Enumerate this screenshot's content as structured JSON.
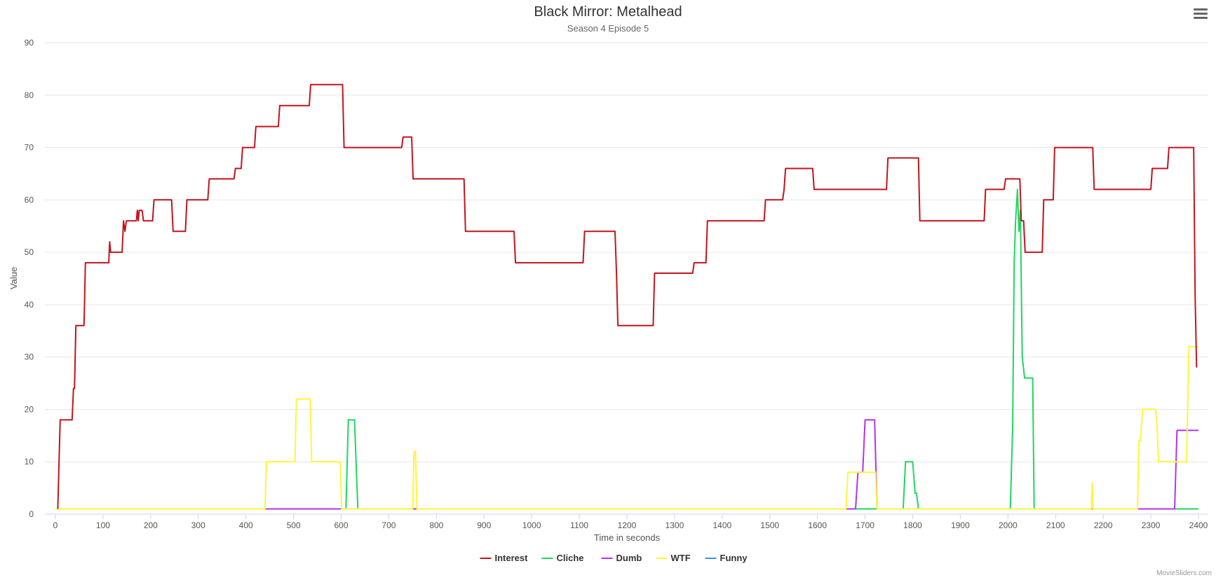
{
  "header": {
    "title": "Black Mirror: Metalhead",
    "subtitle": "Season 4 Episode 5",
    "menu_icon": "hamburger-menu-icon"
  },
  "footer": {
    "credit": "MovieSliders.com"
  },
  "chart_data": {
    "type": "line",
    "title": "Black Mirror: Metalhead",
    "subtitle": "Season 4 Episode 5",
    "xlabel": "Time in seconds",
    "ylabel": "Value",
    "xlim": [
      0,
      2400
    ],
    "ylim": [
      0,
      90
    ],
    "x_ticks": [
      0,
      100,
      200,
      300,
      400,
      500,
      600,
      700,
      800,
      900,
      1000,
      1100,
      1200,
      1300,
      1400,
      1500,
      1600,
      1700,
      1800,
      1900,
      2000,
      2100,
      2200,
      2300,
      2400
    ],
    "y_ticks": [
      0,
      10,
      20,
      30,
      40,
      50,
      60,
      70,
      80,
      90
    ],
    "grid": "horizontal",
    "legend_position": "bottom-center",
    "series": [
      {
        "name": "Funny",
        "color": "#2f9ae0",
        "points": [
          [
            0,
            1
          ],
          [
            2400,
            1
          ]
        ]
      },
      {
        "name": "Cliche",
        "color": "#1fd661",
        "points": [
          [
            0,
            1
          ],
          [
            610,
            1
          ],
          [
            615,
            18
          ],
          [
            628,
            18
          ],
          [
            635,
            1
          ],
          [
            1780,
            1
          ],
          [
            1785,
            10
          ],
          [
            1800,
            10
          ],
          [
            1805,
            4
          ],
          [
            1808,
            4
          ],
          [
            1812,
            1
          ],
          [
            2005,
            1
          ],
          [
            2010,
            17
          ],
          [
            2013,
            48
          ],
          [
            2016,
            56
          ],
          [
            2020,
            62
          ],
          [
            2023,
            54
          ],
          [
            2026,
            58
          ],
          [
            2030,
            30
          ],
          [
            2035,
            26
          ],
          [
            2052,
            26
          ],
          [
            2055,
            1
          ],
          [
            2400,
            1
          ]
        ]
      },
      {
        "name": "Dumb",
        "color": "#b133f0",
        "points": [
          [
            0,
            1
          ],
          [
            1680,
            1
          ],
          [
            1685,
            8
          ],
          [
            1695,
            8
          ],
          [
            1700,
            18
          ],
          [
            1720,
            18
          ],
          [
            1725,
            1
          ],
          [
            2350,
            1
          ],
          [
            2355,
            16
          ],
          [
            2400,
            16
          ]
        ]
      },
      {
        "name": "WTF",
        "color": "#fff53a",
        "points": [
          [
            0,
            1
          ],
          [
            440,
            1
          ],
          [
            443,
            10
          ],
          [
            503,
            10
          ],
          [
            506,
            22
          ],
          [
            535,
            22
          ],
          [
            538,
            10
          ],
          [
            598,
            10
          ],
          [
            601,
            1
          ],
          [
            750,
            1
          ],
          [
            753,
            12
          ],
          [
            756,
            12
          ],
          [
            759,
            1
          ],
          [
            1660,
            1
          ],
          [
            1664,
            8
          ],
          [
            1722,
            8
          ],
          [
            1725,
            1
          ],
          [
            2175,
            1
          ],
          [
            2177,
            6
          ],
          [
            2179,
            1
          ],
          [
            2272,
            1
          ],
          [
            2275,
            14
          ],
          [
            2278,
            14
          ],
          [
            2283,
            20
          ],
          [
            2310,
            20
          ],
          [
            2313,
            17
          ],
          [
            2316,
            10
          ],
          [
            2375,
            10
          ],
          [
            2380,
            32
          ],
          [
            2400,
            32
          ]
        ]
      },
      {
        "name": "Interest",
        "color": "#c1151c",
        "points": [
          [
            5,
            1
          ],
          [
            10,
            18
          ],
          [
            35,
            18
          ],
          [
            38,
            24
          ],
          [
            40,
            24
          ],
          [
            43,
            36
          ],
          [
            60,
            36
          ],
          [
            63,
            48
          ],
          [
            112,
            48
          ],
          [
            114,
            52
          ],
          [
            116,
            50
          ],
          [
            140,
            50
          ],
          [
            143,
            56
          ],
          [
            146,
            54
          ],
          [
            149,
            56
          ],
          [
            170,
            56
          ],
          [
            172,
            58
          ],
          [
            174,
            56
          ],
          [
            176,
            58
          ],
          [
            182,
            58
          ],
          [
            185,
            56
          ],
          [
            204,
            56
          ],
          [
            207,
            60
          ],
          [
            244,
            60
          ],
          [
            247,
            54
          ],
          [
            273,
            54
          ],
          [
            276,
            60
          ],
          [
            320,
            60
          ],
          [
            323,
            64
          ],
          [
            375,
            64
          ],
          [
            378,
            66
          ],
          [
            390,
            66
          ],
          [
            393,
            70
          ],
          [
            418,
            70
          ],
          [
            421,
            74
          ],
          [
            468,
            74
          ],
          [
            471,
            78
          ],
          [
            533,
            78
          ],
          [
            536,
            82
          ],
          [
            603,
            82
          ],
          [
            606,
            70
          ],
          [
            727,
            70
          ],
          [
            730,
            72
          ],
          [
            748,
            72
          ],
          [
            751,
            64
          ],
          [
            858,
            64
          ],
          [
            861,
            54
          ],
          [
            963,
            54
          ],
          [
            966,
            48
          ],
          [
            1108,
            48
          ],
          [
            1111,
            54
          ],
          [
            1175,
            54
          ],
          [
            1178,
            46
          ],
          [
            1181,
            36
          ],
          [
            1255,
            36
          ],
          [
            1258,
            46
          ],
          [
            1338,
            46
          ],
          [
            1341,
            48
          ],
          [
            1366,
            48
          ],
          [
            1369,
            56
          ],
          [
            1488,
            56
          ],
          [
            1491,
            60
          ],
          [
            1527,
            60
          ],
          [
            1530,
            62
          ],
          [
            1533,
            66
          ],
          [
            1590,
            66
          ],
          [
            1593,
            62
          ],
          [
            1745,
            62
          ],
          [
            1748,
            68
          ],
          [
            1812,
            68
          ],
          [
            1815,
            56
          ],
          [
            1950,
            56
          ],
          [
            1953,
            62
          ],
          [
            1992,
            62
          ],
          [
            1995,
            64
          ],
          [
            2025,
            64
          ],
          [
            2028,
            56
          ],
          [
            2033,
            56
          ],
          [
            2036,
            50
          ],
          [
            2072,
            50
          ],
          [
            2075,
            60
          ],
          [
            2095,
            60
          ],
          [
            2098,
            70
          ],
          [
            2178,
            70
          ],
          [
            2181,
            62
          ],
          [
            2300,
            62
          ],
          [
            2303,
            66
          ],
          [
            2335,
            66
          ],
          [
            2338,
            70
          ],
          [
            2390,
            70
          ],
          [
            2393,
            42
          ],
          [
            2396,
            28
          ]
        ]
      }
    ],
    "legend_order": [
      "Interest",
      "Cliche",
      "Dumb",
      "WTF",
      "Funny"
    ]
  }
}
